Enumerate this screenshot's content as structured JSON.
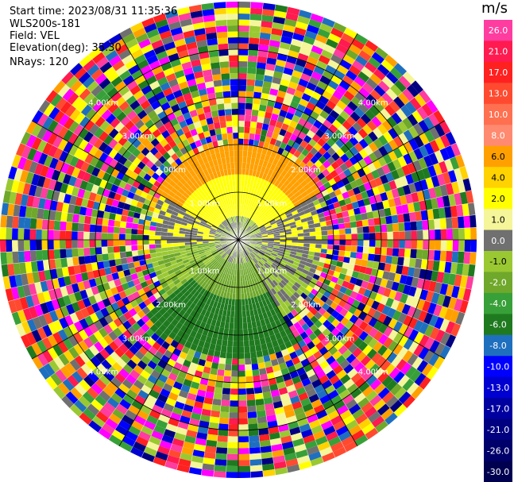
{
  "header": {
    "start_time": "Start time: 2023/08/31 11:35:36",
    "instrument": "WLS200s-181",
    "field": "Field: VEL",
    "elevation": "Elevation(deg): 35.30",
    "nrays": "NRays: 120"
  },
  "colorbar": {
    "unit": "m/s",
    "ticks": [
      "26.0",
      "21.0",
      "17.0",
      "13.0",
      "10.0",
      "8.0",
      "6.0",
      "4.0",
      "2.0",
      "1.0",
      "0.0",
      "-1.0",
      "-2.0",
      "-4.0",
      "-6.0",
      "-8.0",
      "-10.0",
      "-13.0",
      "-17.0",
      "-21.0",
      "-26.0",
      "-30.0"
    ],
    "colors": [
      "#ff3ca0",
      "#ff1a50",
      "#ff2020",
      "#ff4a30",
      "#ff7050",
      "#ff8a70",
      "#ffa000",
      "#ffd200",
      "#ffff00",
      "#f5f59a",
      "#707070",
      "#9ac832",
      "#6fa82a",
      "#38a038",
      "#1f7a1f",
      "#1f6fbf",
      "#0000ff",
      "#0000d0",
      "#0000a0",
      "#000080",
      "#00006a",
      "#000050"
    ]
  },
  "chart_data": {
    "type": "heatmap",
    "projection": "polar PPI",
    "field": "VEL",
    "units": "m/s",
    "n_rays": 120,
    "range_rings_km": [
      1.0,
      2.0,
      3.0,
      4.0
    ],
    "range_ring_labels": [
      "1.00km",
      "2.00km",
      "3.00km",
      "4.00km"
    ],
    "max_range_km": 5.0,
    "color_range": [
      -30.0,
      26.0
    ],
    "spoke_bearings_deg": [
      0,
      30,
      60,
      90,
      120,
      150,
      180,
      210,
      240,
      270,
      300,
      330
    ]
  }
}
